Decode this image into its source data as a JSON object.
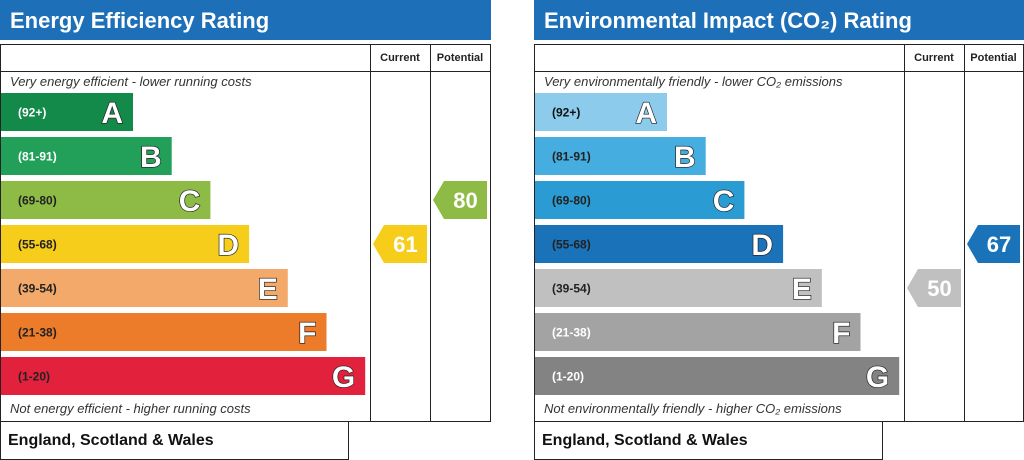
{
  "chart_data": [
    {
      "type": "bar",
      "title": "Energy Efficiency Rating",
      "columns": [
        "Current",
        "Potential"
      ],
      "caption_top": "Very energy efficient - lower running costs",
      "caption_bottom": "Not energy efficient - higher running costs",
      "footer": "England, Scotland & Wales",
      "bands": [
        {
          "range": "(92+)",
          "letter": "A",
          "color": "#138a4a",
          "text_color": "#ffffff"
        },
        {
          "range": "(81-91)",
          "letter": "B",
          "color": "#22a05a",
          "text_color": "#ffffff"
        },
        {
          "range": "(69-80)",
          "letter": "C",
          "color": "#8dbb45",
          "text_color": "#222222"
        },
        {
          "range": "(55-68)",
          "letter": "D",
          "color": "#f6cd1a",
          "text_color": "#222222"
        },
        {
          "range": "(39-54)",
          "letter": "E",
          "color": "#f2a96a",
          "text_color": "#222222"
        },
        {
          "range": "(21-38)",
          "letter": "F",
          "color": "#ec7b2a",
          "text_color": "#222222"
        },
        {
          "range": "(1-20)",
          "letter": "G",
          "color": "#e2223d",
          "text_color": "#222222"
        }
      ],
      "current": {
        "value": 61,
        "band": "D",
        "color": "#f6cd1a"
      },
      "potential": {
        "value": 80,
        "band": "C",
        "color": "#8dbb45"
      }
    },
    {
      "type": "bar",
      "title": "Environmental Impact (CO₂) Rating",
      "columns": [
        "Current",
        "Potential"
      ],
      "caption_top": "Very environmentally friendly - lower CO₂ emissions",
      "caption_bottom": "Not environmentally friendly - higher CO₂ emissions",
      "footer": "England, Scotland & Wales",
      "bands": [
        {
          "range": "(92+)",
          "letter": "A",
          "color": "#8ccbec",
          "text_color": "#111111"
        },
        {
          "range": "(81-91)",
          "letter": "B",
          "color": "#46ade0",
          "text_color": "#222222"
        },
        {
          "range": "(69-80)",
          "letter": "C",
          "color": "#2a9bd3",
          "text_color": "#222222"
        },
        {
          "range": "(55-68)",
          "letter": "D",
          "color": "#1a72b8",
          "text_color": "#222222"
        },
        {
          "range": "(39-54)",
          "letter": "E",
          "color": "#c0c0c0",
          "text_color": "#222222"
        },
        {
          "range": "(21-38)",
          "letter": "F",
          "color": "#a3a3a3",
          "text_color": "#ffffff"
        },
        {
          "range": "(1-20)",
          "letter": "G",
          "color": "#838383",
          "text_color": "#ffffff"
        }
      ],
      "current": {
        "value": 50,
        "band": "E",
        "color": "#c0c0c0"
      },
      "potential": {
        "value": 67,
        "band": "D",
        "color": "#1a72b8"
      }
    }
  ]
}
